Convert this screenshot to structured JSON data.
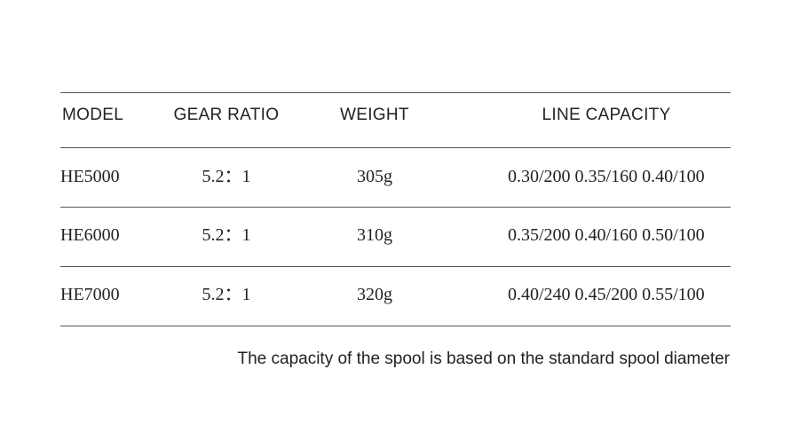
{
  "table": {
    "header": [
      "MODEL",
      "GEAR RATIO",
      "WEIGHT",
      "LINE CAPACITY"
    ],
    "rows": [
      [
        "HE5000",
        "5.2：1",
        "305g",
        "0.30/200 0.35/160 0.40/100"
      ],
      [
        "HE6000",
        "5.2：1",
        "310g",
        "0.35/200 0.40/160 0.50/100"
      ],
      [
        "HE7000",
        "5.2：1",
        "320g",
        "0.40/240 0.45/200 0.55/100"
      ]
    ]
  },
  "footnote": "The capacity of the spool is based on the standard spool diameter"
}
